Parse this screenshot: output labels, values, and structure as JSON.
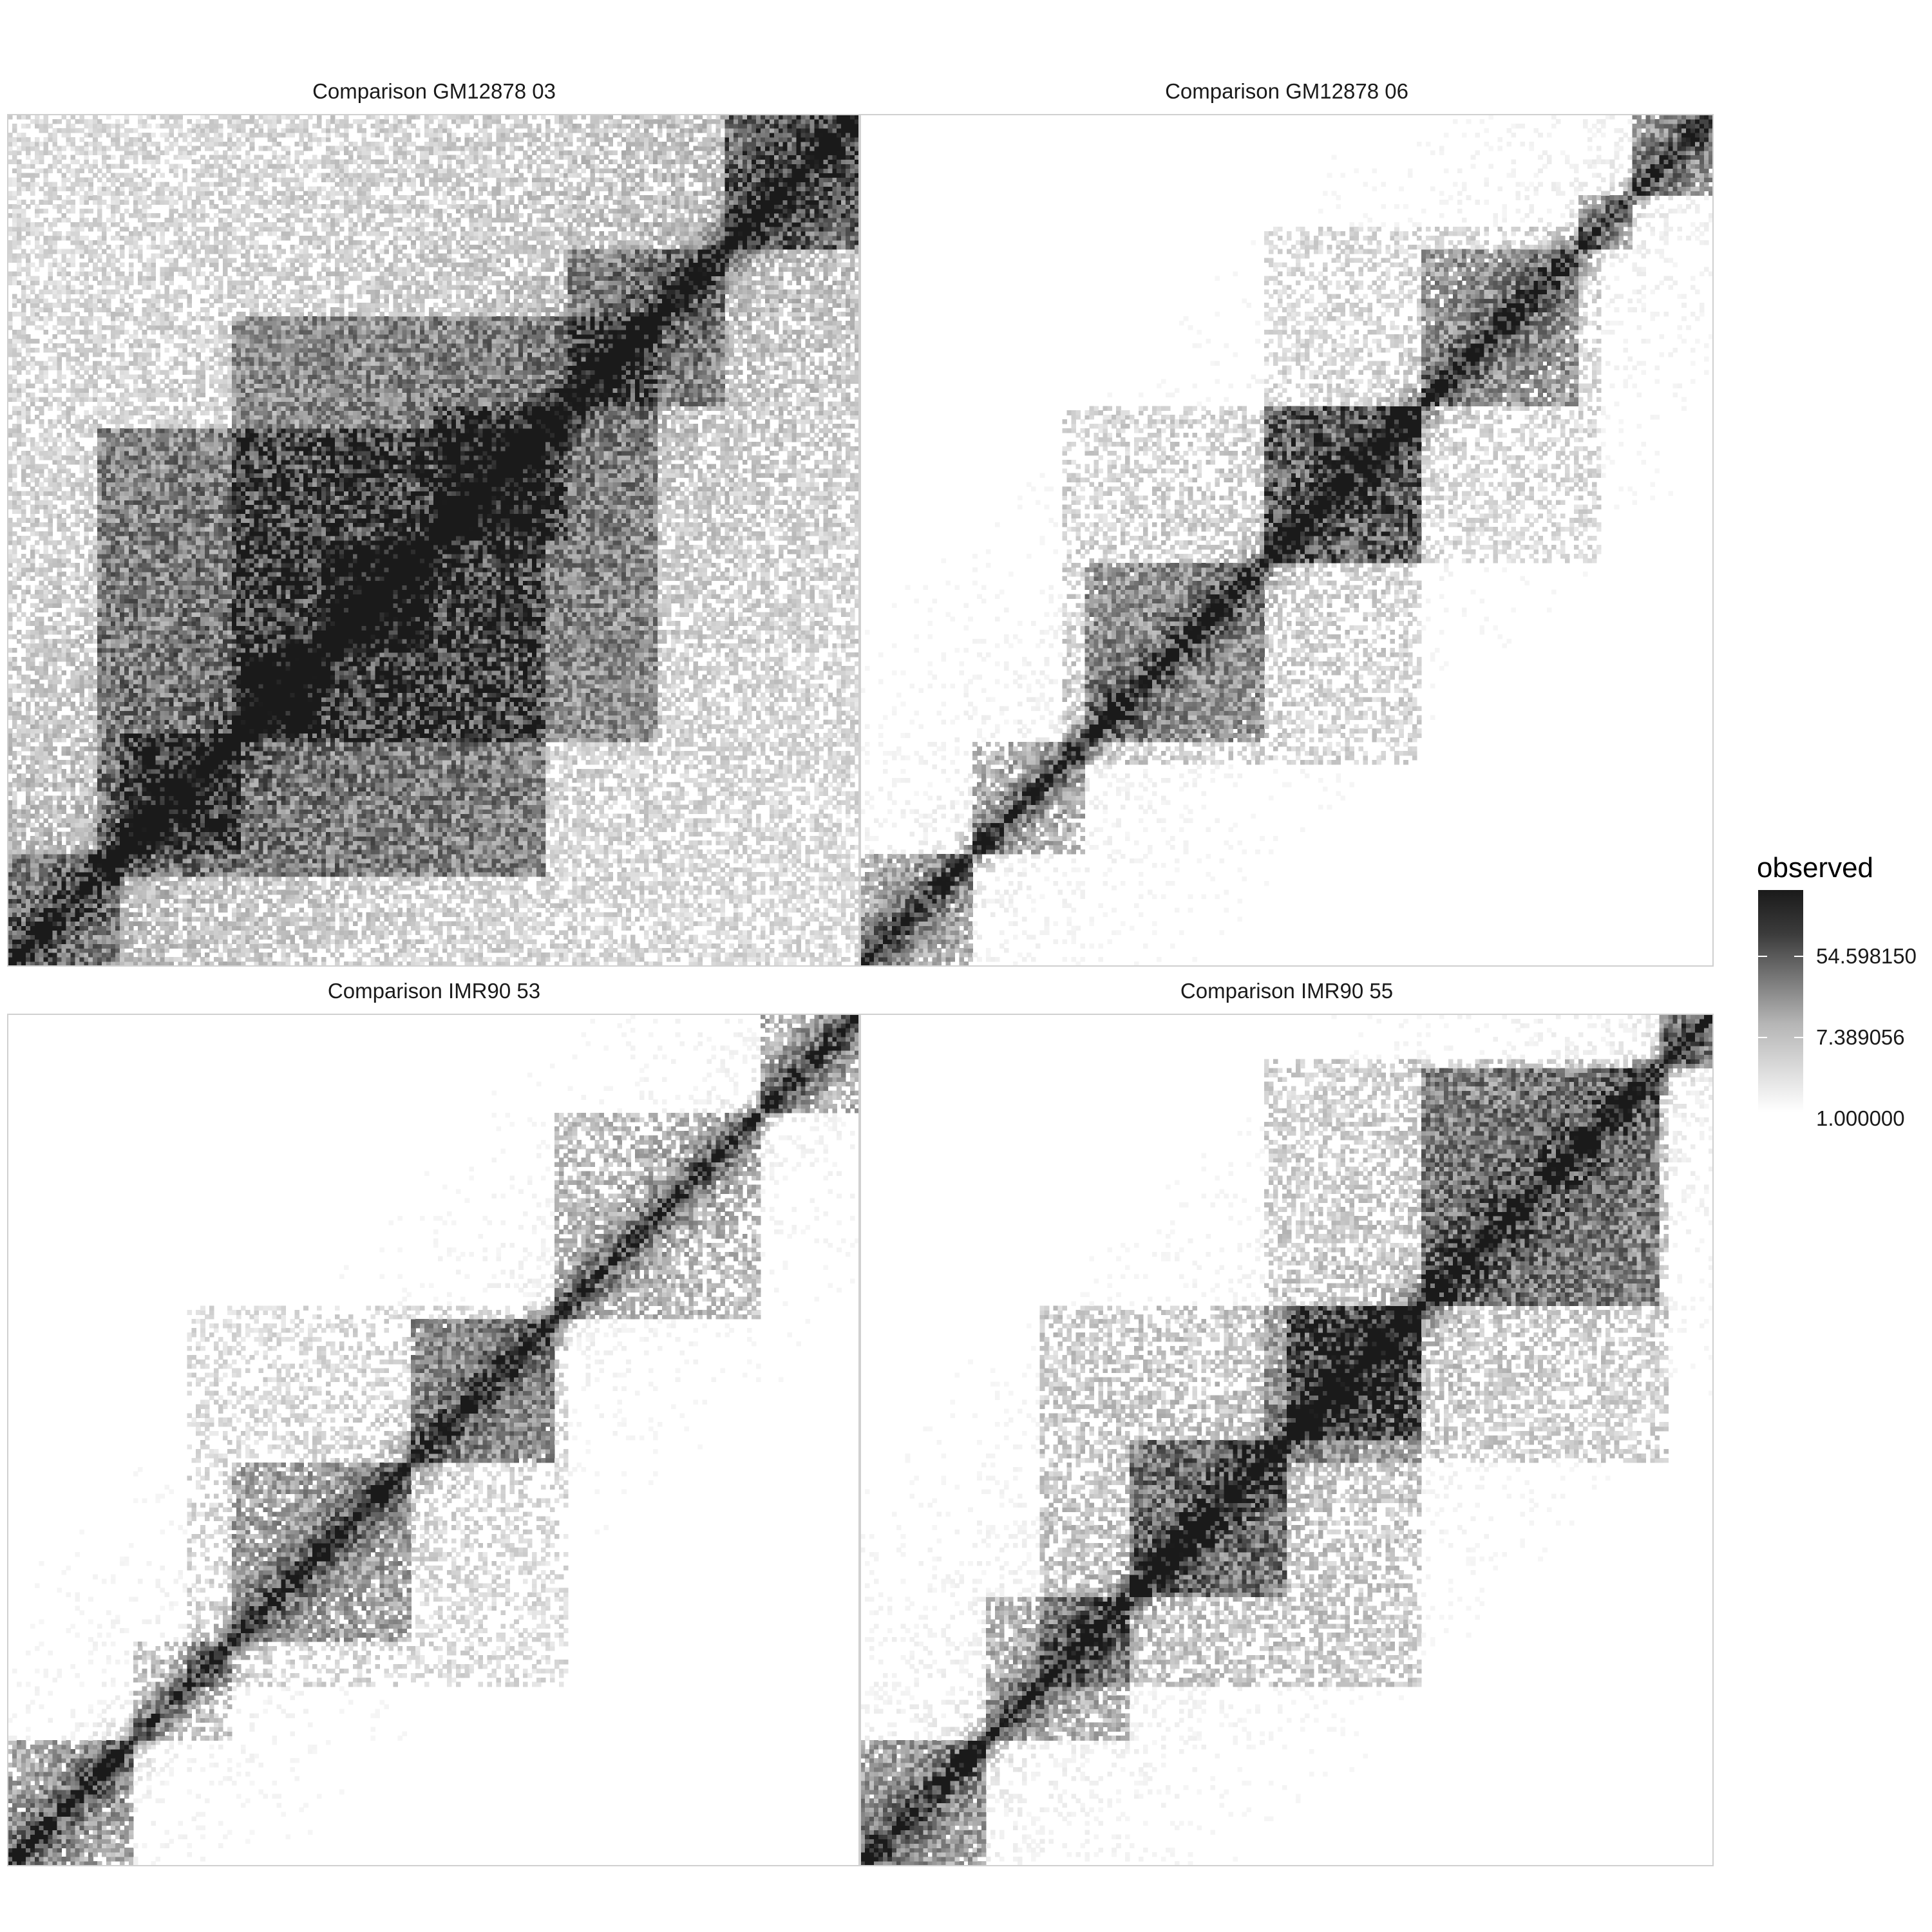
{
  "chart_data": {
    "type": "heatmap",
    "description_fill": "Hi-C style contact matrices in grayscale, log color scale",
    "facets": [
      {
        "title": "Comparison GM12878 03",
        "bins": 190,
        "diagonal_strength": 1.0,
        "background_density": 0.55,
        "domains": [
          [
            0,
            25,
            0.35
          ],
          [
            25,
            52,
            0.45
          ],
          [
            52,
            70,
            0.55
          ],
          [
            70,
            95,
            0.5
          ],
          [
            95,
            125,
            0.4
          ],
          [
            125,
            160,
            0.35
          ],
          [
            160,
            190,
            0.5
          ]
        ],
        "meta_domains": [
          [
            20,
            120,
            0.35
          ],
          [
            50,
            145,
            0.3
          ],
          [
            0,
            190,
            0.18
          ]
        ]
      },
      {
        "title": "Comparison GM12878 06",
        "bins": 190,
        "diagonal_strength": 0.85,
        "background_density": 0.25,
        "domains": [
          [
            0,
            25,
            0.4
          ],
          [
            25,
            50,
            0.35
          ],
          [
            50,
            90,
            0.35
          ],
          [
            90,
            125,
            0.45
          ],
          [
            125,
            160,
            0.35
          ],
          [
            160,
            172,
            0.3
          ],
          [
            172,
            190,
            0.45
          ]
        ],
        "meta_domains": [
          [
            45,
            125,
            0.18
          ],
          [
            90,
            165,
            0.15
          ]
        ]
      },
      {
        "title": "Comparison IMR90 53",
        "bins": 190,
        "diagonal_strength": 0.85,
        "background_density": 0.22,
        "domains": [
          [
            0,
            28,
            0.45
          ],
          [
            28,
            50,
            0.25
          ],
          [
            50,
            90,
            0.3
          ],
          [
            90,
            122,
            0.4
          ],
          [
            122,
            168,
            0.35
          ],
          [
            168,
            190,
            0.4
          ]
        ],
        "meta_domains": [
          [
            40,
            125,
            0.15
          ]
        ]
      },
      {
        "title": "Comparison IMR90 55",
        "bins": 190,
        "diagonal_strength": 0.95,
        "background_density": 0.3,
        "domains": [
          [
            0,
            28,
            0.45
          ],
          [
            28,
            60,
            0.35
          ],
          [
            60,
            95,
            0.45
          ],
          [
            95,
            125,
            0.5
          ],
          [
            125,
            178,
            0.45
          ],
          [
            178,
            190,
            0.5
          ]
        ],
        "meta_domains": [
          [
            40,
            125,
            0.22
          ],
          [
            90,
            180,
            0.2
          ]
        ]
      }
    ],
    "legend": {
      "title": "observed",
      "scale": "log",
      "breaks": [
        "54.598150",
        "7.389056",
        "1.000000"
      ],
      "limits": [
        1,
        150
      ],
      "colors": {
        "low": "#ffffff",
        "high": "#1a1a1a"
      }
    }
  }
}
